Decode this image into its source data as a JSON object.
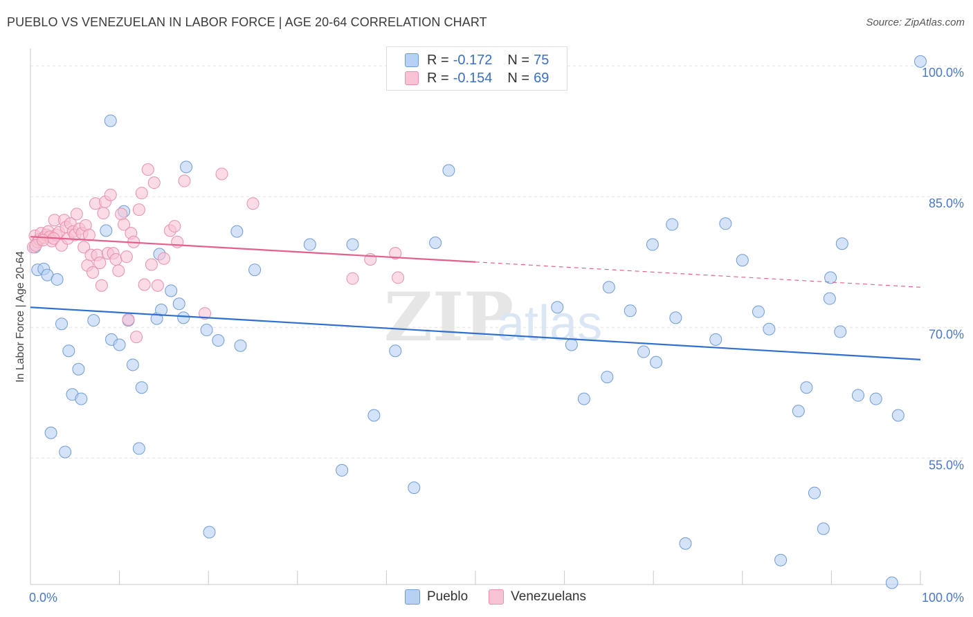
{
  "title": "PUEBLO VS VENEZUELAN IN LABOR FORCE | AGE 20-64 CORRELATION CHART",
  "source": "Source: ZipAtlas.com",
  "watermark": {
    "zip": "ZIP",
    "atlas": "atlas"
  },
  "colors": {
    "pueblo_fill": "#b8d0f2",
    "pueblo_stroke": "#6f9bd8",
    "pueblo_line": "#2f6fcf",
    "venezuelan_fill": "#f8c3d4",
    "venezuelan_stroke": "#e890ad",
    "venezuelan_line": "#e4608a",
    "tick_text": "#4a78c8"
  },
  "legend": {
    "rows": [
      {
        "r_label": "R =",
        "r_value": "-0.172",
        "n_label": "N =",
        "n_value": "75"
      },
      {
        "r_label": "R =",
        "r_value": "-0.154",
        "n_label": "N =",
        "n_value": "69"
      }
    ]
  },
  "bottom_legend": [
    {
      "label": "Pueblo"
    },
    {
      "label": "Venezuelans"
    }
  ],
  "chart_data": {
    "type": "scatter",
    "title": "PUEBLO VS VENEZUELAN IN LABOR FORCE | AGE 20-64 CORRELATION CHART",
    "xlabel": "",
    "ylabel": "In Labor Force | Age 20-64",
    "xlim": [
      0,
      100
    ],
    "ylim": [
      40.5,
      102
    ],
    "x_tick_labels": [
      "0.0%",
      "100.0%"
    ],
    "y_ticks": [
      {
        "value": 100,
        "label": "100.0%"
      },
      {
        "value": 85,
        "label": "85.0%"
      },
      {
        "value": 70,
        "label": "70.0%"
      },
      {
        "value": 55,
        "label": "55.0%"
      }
    ],
    "grid": true,
    "legend_position": "top-center",
    "series": [
      {
        "name": "Pueblo",
        "r": -0.172,
        "n": 75,
        "trend": {
          "x": [
            0,
            100
          ],
          "y": [
            72.3,
            66.3
          ],
          "dashed_from": null
        },
        "points": [
          [
            0.5,
            79.2
          ],
          [
            0.8,
            76.6
          ],
          [
            1.5,
            76.7
          ],
          [
            1.9,
            76.0
          ],
          [
            3.0,
            75.5
          ],
          [
            3.5,
            70.4
          ],
          [
            4.3,
            67.3
          ],
          [
            5.4,
            65.2
          ],
          [
            4.7,
            62.3
          ],
          [
            5.7,
            61.8
          ],
          [
            2.3,
            57.9
          ],
          [
            3.9,
            55.7
          ],
          [
            7.1,
            70.8
          ],
          [
            8.5,
            81.1
          ],
          [
            9.1,
            68.6
          ],
          [
            9.0,
            93.7
          ],
          [
            10.0,
            68.0
          ],
          [
            10.5,
            83.3
          ],
          [
            11.0,
            70.8
          ],
          [
            11.5,
            65.7
          ],
          [
            12.5,
            63.1
          ],
          [
            12.2,
            56.1
          ],
          [
            14.2,
            71.0
          ],
          [
            14.7,
            72.0
          ],
          [
            14.5,
            78.4
          ],
          [
            15.8,
            74.2
          ],
          [
            16.7,
            72.7
          ],
          [
            17.2,
            71.1
          ],
          [
            17.5,
            88.4
          ],
          [
            19.8,
            69.7
          ],
          [
            20.1,
            46.5
          ],
          [
            21.1,
            68.5
          ],
          [
            23.2,
            81.0
          ],
          [
            23.6,
            67.9
          ],
          [
            25.2,
            76.6
          ],
          [
            31.4,
            79.5
          ],
          [
            35.0,
            53.6
          ],
          [
            36.2,
            79.5
          ],
          [
            38.6,
            59.9
          ],
          [
            41.0,
            67.3
          ],
          [
            43.1,
            51.6
          ],
          [
            45.5,
            79.7
          ],
          [
            47.0,
            88.0
          ],
          [
            53.0,
            100.5
          ],
          [
            59.2,
            72.3
          ],
          [
            60.8,
            68.0
          ],
          [
            62.2,
            61.8
          ],
          [
            65.0,
            74.6
          ],
          [
            64.8,
            64.3
          ],
          [
            67.4,
            71.9
          ],
          [
            68.9,
            67.2
          ],
          [
            69.9,
            79.5
          ],
          [
            70.3,
            66.0
          ],
          [
            72.1,
            81.8
          ],
          [
            72.5,
            71.1
          ],
          [
            73.6,
            45.2
          ],
          [
            77.0,
            68.6
          ],
          [
            78.1,
            81.9
          ],
          [
            80.0,
            77.7
          ],
          [
            81.8,
            71.8
          ],
          [
            83.0,
            69.8
          ],
          [
            84.3,
            43.3
          ],
          [
            86.3,
            60.4
          ],
          [
            87.2,
            63.1
          ],
          [
            88.1,
            51.0
          ],
          [
            89.1,
            46.9
          ],
          [
            89.8,
            73.3
          ],
          [
            89.9,
            75.7
          ],
          [
            91.0,
            69.5
          ],
          [
            91.2,
            79.6
          ],
          [
            93.0,
            62.2
          ],
          [
            95.0,
            61.8
          ],
          [
            96.8,
            40.7
          ],
          [
            97.5,
            59.9
          ],
          [
            100.0,
            100.5
          ]
        ]
      },
      {
        "name": "Venezuelans",
        "r": -0.154,
        "n": 69,
        "trend": {
          "x": [
            0,
            100
          ],
          "y": [
            80.4,
            74.6
          ],
          "dashed_from": 50
        },
        "points": [
          [
            0.3,
            79.2
          ],
          [
            0.5,
            80.5
          ],
          [
            0.8,
            79.8
          ],
          [
            1.0,
            80.1
          ],
          [
            1.2,
            80.8
          ],
          [
            1.5,
            80.3
          ],
          [
            1.8,
            80.6
          ],
          [
            2.0,
            81.0
          ],
          [
            2.2,
            80.4
          ],
          [
            2.4,
            79.9
          ],
          [
            2.7,
            82.3
          ],
          [
            2.9,
            80.6
          ],
          [
            3.2,
            80.9
          ],
          [
            3.5,
            79.4
          ],
          [
            3.8,
            82.3
          ],
          [
            4.0,
            81.5
          ],
          [
            4.2,
            80.2
          ],
          [
            4.5,
            81.9
          ],
          [
            4.8,
            81.0
          ],
          [
            5.0,
            80.6
          ],
          [
            5.2,
            83.0
          ],
          [
            5.5,
            81.3
          ],
          [
            5.8,
            80.8
          ],
          [
            6.0,
            79.2
          ],
          [
            6.2,
            81.7
          ],
          [
            6.4,
            77.1
          ],
          [
            6.6,
            80.6
          ],
          [
            6.8,
            78.3
          ],
          [
            7.0,
            76.3
          ],
          [
            7.3,
            84.2
          ],
          [
            7.5,
            78.3
          ],
          [
            7.8,
            77.4
          ],
          [
            8.0,
            74.8
          ],
          [
            8.2,
            83.1
          ],
          [
            8.4,
            84.4
          ],
          [
            8.7,
            78.5
          ],
          [
            9.0,
            85.2
          ],
          [
            9.3,
            78.5
          ],
          [
            9.6,
            77.8
          ],
          [
            9.9,
            76.5
          ],
          [
            10.2,
            83.0
          ],
          [
            10.5,
            81.8
          ],
          [
            10.8,
            78.1
          ],
          [
            11.0,
            70.9
          ],
          [
            11.3,
            80.8
          ],
          [
            11.6,
            79.8
          ],
          [
            11.9,
            68.9
          ],
          [
            12.2,
            83.5
          ],
          [
            12.5,
            85.4
          ],
          [
            12.8,
            74.9
          ],
          [
            13.2,
            88.1
          ],
          [
            13.6,
            77.2
          ],
          [
            13.9,
            86.6
          ],
          [
            14.3,
            74.8
          ],
          [
            15.0,
            77.9
          ],
          [
            15.7,
            81.1
          ],
          [
            16.2,
            81.6
          ],
          [
            16.5,
            79.8
          ],
          [
            17.3,
            86.8
          ],
          [
            19.6,
            71.6
          ],
          [
            21.5,
            87.6
          ],
          [
            25.0,
            84.2
          ],
          [
            36.2,
            75.6
          ],
          [
            38.2,
            77.8
          ],
          [
            41.0,
            78.5
          ],
          [
            41.3,
            75.7
          ],
          [
            0.6,
            79.4
          ],
          [
            1.4,
            80.0
          ],
          [
            2.6,
            80.2
          ]
        ]
      }
    ]
  }
}
